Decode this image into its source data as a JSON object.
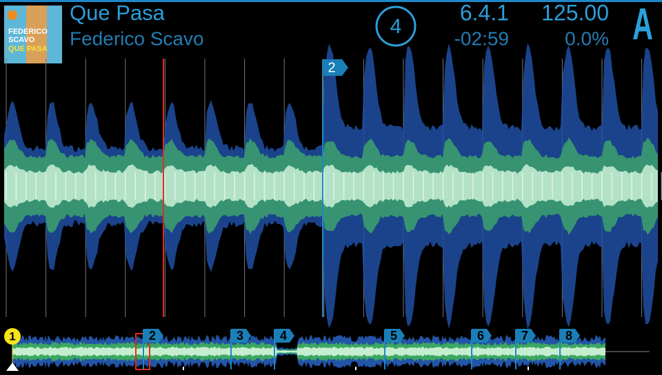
{
  "header": {
    "title": "Que Pasa",
    "artist": "Federico Scavo",
    "deck_number": "4",
    "beat_position": "6.4.1",
    "bpm": "125.00",
    "remaining_time": "-02:59",
    "pitch": "0.0%",
    "deck_letter": "A"
  },
  "album_art": {
    "line1": "FEDERICO",
    "line2": "SCAVO",
    "line3": "QUE PASA"
  },
  "waveform": {
    "cue_label": "2"
  },
  "overview": {
    "cues": [
      "1",
      "2",
      "3",
      "4",
      "5",
      "6",
      "7",
      "8"
    ]
  }
}
